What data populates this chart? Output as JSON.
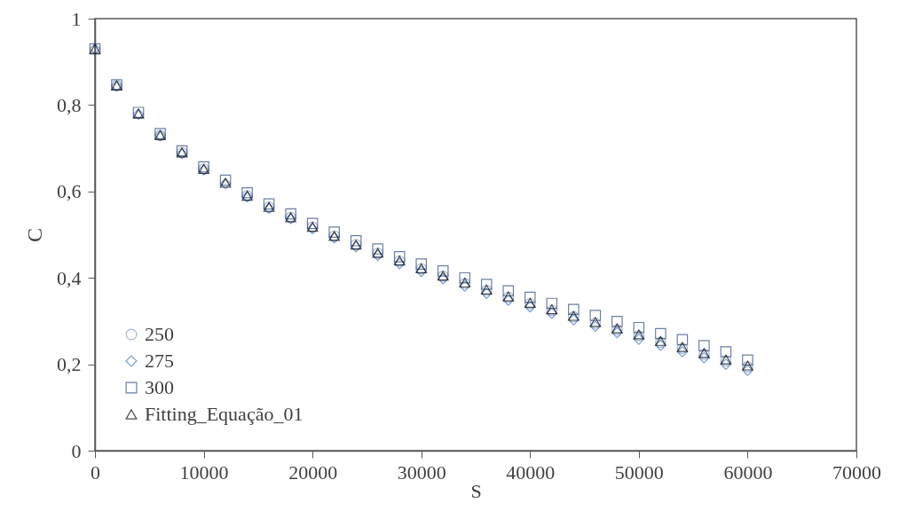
{
  "chart_data": {
    "type": "scatter",
    "xlabel": "S",
    "ylabel": "C",
    "legend": "bottom left",
    "grid": false,
    "x": [
      0,
      2000,
      4000,
      6000,
      8000,
      10000,
      12000,
      14000,
      16000,
      18000,
      20000,
      22000,
      24000,
      26000,
      28000,
      30000,
      32000,
      34000,
      36000,
      38000,
      40000,
      42000,
      44000,
      46000,
      48000,
      50000,
      52000,
      54000,
      56000,
      58000,
      60000
    ],
    "xlim": [
      0,
      70000
    ],
    "xticks": [
      0,
      10000,
      20000,
      30000,
      40000,
      50000,
      60000,
      70000
    ],
    "ylim": [
      0,
      1
    ],
    "yticks": [
      0,
      {
        "value": 0.2,
        "label": "0,2"
      },
      {
        "value": 0.4,
        "label": "0,4"
      },
      {
        "value": 0.6,
        "label": "0,6"
      },
      {
        "value": 0.8,
        "label": "0,8"
      },
      1
    ],
    "series": [
      {
        "name": "250",
        "color": "#7f96c0",
        "marker": "circle",
        "values": [
          null,
          0.845,
          null,
          0.73,
          0.69,
          0.652,
          null,
          0.59,
          0.564,
          0.54,
          0.518,
          0.497,
          0.477,
          0.457,
          0.439,
          0.421,
          0.404,
          0.387,
          0.371,
          0.355,
          0.34,
          0.325,
          0.31,
          0.295,
          0.28,
          0.266,
          0.251,
          0.237,
          0.223,
          0.208,
          0.194
        ]
      },
      {
        "name": "275",
        "color": "#4472c4",
        "marker": "diamond",
        "values": [
          0.93,
          0.844,
          0.779,
          0.729,
          0.688,
          0.65,
          0.618,
          0.588,
          0.561,
          0.537,
          0.514,
          0.493,
          0.472,
          0.452,
          0.433,
          0.415,
          0.398,
          0.381,
          0.364,
          0.348,
          0.333,
          0.318,
          0.303,
          0.288,
          0.273,
          0.258,
          0.244,
          0.229,
          0.215,
          0.2,
          0.186
        ]
      },
      {
        "name": "300",
        "color": "#2f4b7c",
        "marker": "square",
        "values": [
          0.93,
          0.847,
          0.783,
          0.734,
          0.694,
          0.657,
          0.626,
          0.597,
          0.571,
          0.548,
          0.526,
          0.506,
          0.486,
          0.467,
          0.449,
          0.432,
          0.416,
          0.4,
          0.385,
          0.37,
          0.355,
          0.341,
          0.327,
          0.313,
          0.299,
          0.285,
          0.271,
          0.257,
          0.243,
          0.229,
          0.21
        ]
      },
      {
        "name": "Fitting_Equação_01",
        "color": "#000000",
        "marker": "triangle",
        "values": [
          0.93,
          0.845,
          0.78,
          0.73,
          0.69,
          0.652,
          0.62,
          0.59,
          0.564,
          0.54,
          0.518,
          0.497,
          0.477,
          0.458,
          0.44,
          0.422,
          0.405,
          0.389,
          0.373,
          0.357,
          0.342,
          0.327,
          0.312,
          0.298,
          0.283,
          0.269,
          0.254,
          0.24,
          0.226,
          0.211,
          0.197
        ]
      }
    ]
  }
}
